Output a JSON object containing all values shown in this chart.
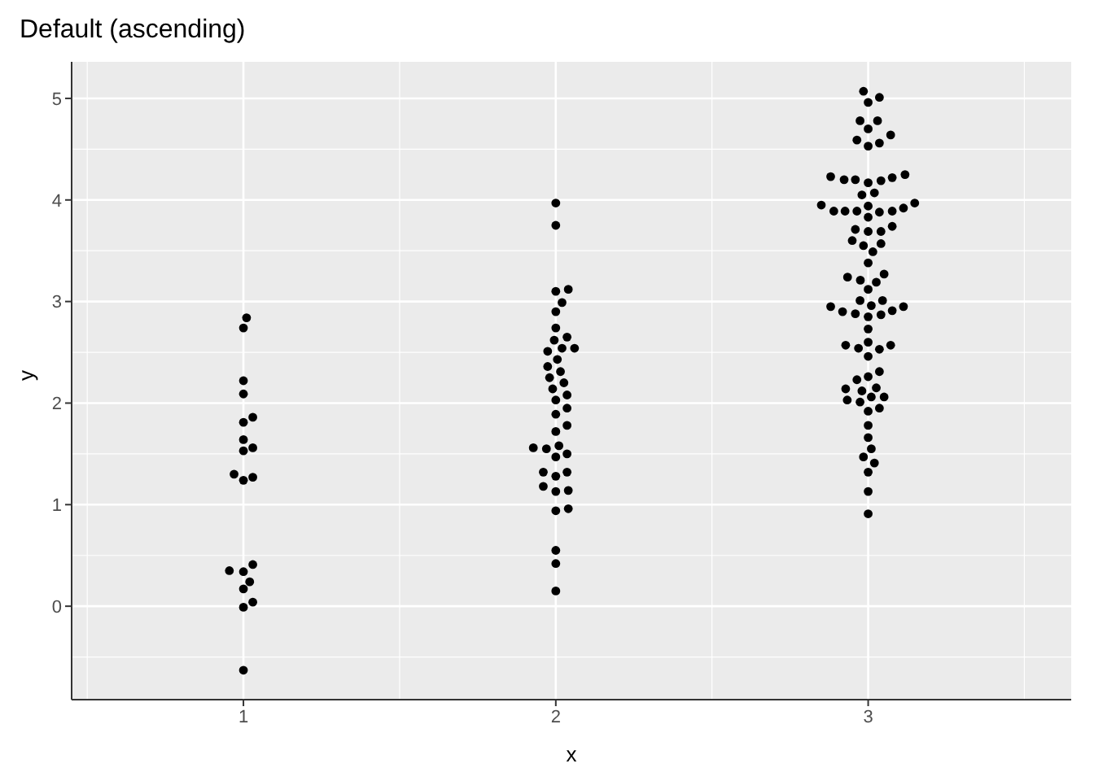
{
  "chart_data": {
    "type": "scatter",
    "title": "Default (ascending)",
    "xlabel": "x",
    "ylabel": "y",
    "xlim": [
      0.45,
      3.65
    ],
    "ylim": [
      -0.92,
      5.36
    ],
    "xticks": [
      1,
      2,
      3
    ],
    "yticks": [
      0,
      1,
      2,
      3,
      4,
      5
    ],
    "grid": true,
    "legend": false,
    "marker": "circle",
    "series": [
      {
        "color": "#000000",
        "x": [
          1.01,
          1,
          1,
          1,
          1.03,
          1,
          1,
          1.03,
          1,
          0.97,
          1.03,
          1,
          1.03,
          0.955,
          1,
          1.02,
          1,
          1.03,
          1,
          1
        ],
        "values": [
          2.84,
          2.74,
          2.22,
          2.09,
          1.86,
          1.81,
          1.64,
          1.56,
          1.53,
          1.3,
          1.27,
          1.24,
          0.41,
          0.35,
          0.34,
          0.24,
          0.17,
          0.04,
          -0.01,
          -0.63
        ]
      },
      {
        "color": "#000000",
        "x": [
          2,
          2,
          2.04,
          2,
          2.02,
          2,
          2,
          2.036,
          1.995,
          2.06,
          2.02,
          1.974,
          2.005,
          1.974,
          2.015,
          1.98,
          2.026,
          1.99,
          2.036,
          2,
          2.036,
          2,
          2.036,
          2,
          1.928,
          2.01,
          1.97,
          2.036,
          2,
          1.96,
          2.036,
          2,
          1.96,
          2.04,
          2,
          2.04,
          2,
          2,
          2,
          2
        ],
        "values": [
          3.97,
          3.75,
          3.12,
          3.1,
          2.99,
          2.9,
          2.74,
          2.65,
          2.62,
          2.54,
          2.54,
          2.51,
          2.43,
          2.36,
          2.31,
          2.25,
          2.2,
          2.14,
          2.08,
          2.03,
          1.95,
          1.89,
          1.78,
          1.72,
          1.56,
          1.58,
          1.55,
          1.5,
          1.47,
          1.32,
          1.32,
          1.28,
          1.18,
          1.14,
          1.13,
          0.96,
          0.94,
          0.55,
          0.42,
          0.15
        ]
      },
      {
        "color": "#000000",
        "x": [
          2.985,
          3.036,
          3,
          2.974,
          3.03,
          3,
          3.072,
          2.964,
          3.036,
          3,
          2.88,
          3.118,
          2.923,
          2.959,
          3.077,
          3,
          3.041,
          2.98,
          3.02,
          2.85,
          3.149,
          2.89,
          2.926,
          2.964,
          3,
          3.036,
          3.077,
          3.113,
          3,
          2.959,
          3,
          3.041,
          3.077,
          2.949,
          2.985,
          3.041,
          3.015,
          3,
          2.934,
          2.975,
          3.051,
          3.026,
          3,
          2.974,
          3.046,
          3.01,
          2.88,
          3.113,
          2.918,
          2.959,
          3.077,
          3,
          3.041,
          3,
          2.928,
          2.969,
          3,
          3.036,
          3.072,
          3,
          3.036,
          3,
          2.964,
          3.026,
          2.928,
          2.98,
          3.01,
          3.051,
          2.933,
          2.974,
          3.036,
          3,
          3,
          3,
          3.01,
          2.985,
          3.02,
          3,
          3,
          3
        ],
        "values": [
          5.07,
          5.01,
          4.96,
          4.78,
          4.78,
          4.7,
          4.64,
          4.59,
          4.56,
          4.53,
          4.23,
          4.25,
          4.2,
          4.2,
          4.22,
          4.17,
          4.19,
          4.05,
          4.07,
          3.95,
          3.97,
          3.89,
          3.89,
          3.89,
          3.94,
          3.88,
          3.89,
          3.92,
          3.83,
          3.71,
          3.69,
          3.69,
          3.74,
          3.6,
          3.55,
          3.57,
          3.49,
          3.38,
          3.24,
          3.21,
          3.27,
          3.19,
          3.12,
          3.01,
          3.01,
          2.96,
          2.95,
          2.95,
          2.9,
          2.88,
          2.91,
          2.85,
          2.87,
          2.73,
          2.57,
          2.54,
          2.6,
          2.53,
          2.57,
          2.46,
          2.31,
          2.26,
          2.23,
          2.15,
          2.14,
          2.12,
          2.06,
          2.06,
          2.03,
          2.01,
          1.95,
          1.92,
          1.78,
          1.66,
          1.55,
          1.47,
          1.41,
          1.32,
          1.13,
          0.91
        ]
      }
    ]
  }
}
